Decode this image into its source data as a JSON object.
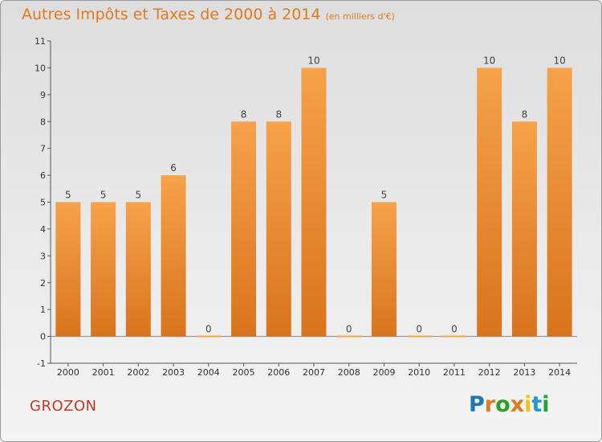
{
  "title": "Autres Impôts et Taxes de 2000 à 2014",
  "subtitle": "(en milliers d'€)",
  "commune": "GROZON",
  "brand": {
    "letters": [
      "P",
      "r",
      "o",
      "x",
      "i",
      "t",
      "i"
    ],
    "colors": [
      "#1f77b4",
      "#e07a1f",
      "#2ca02c",
      "#e07a1f",
      "#f1c40f",
      "#1f9bd4",
      "#2ca02c"
    ]
  },
  "colors": {
    "bar_top": "#f6a24b",
    "bar_bottom": "#d9741e",
    "title": "#e07a1f",
    "commune": "#c0392b"
  },
  "chart_data": {
    "type": "bar",
    "title": "Autres Impôts et Taxes de 2000 à 2014",
    "categories": [
      "2000",
      "2001",
      "2002",
      "2003",
      "2004",
      "2005",
      "2006",
      "2007",
      "2008",
      "2009",
      "2010",
      "2011",
      "2012",
      "2013",
      "2014"
    ],
    "values": [
      5,
      5,
      5,
      6,
      0,
      8,
      8,
      10,
      0,
      5,
      0,
      0,
      10,
      8,
      10
    ],
    "ylim": [
      -1,
      11
    ],
    "yticks": [
      "-1",
      "0",
      "1",
      "2",
      "3",
      "4",
      "5",
      "6",
      "7",
      "8",
      "9",
      "10",
      "11"
    ],
    "grid": false
  }
}
